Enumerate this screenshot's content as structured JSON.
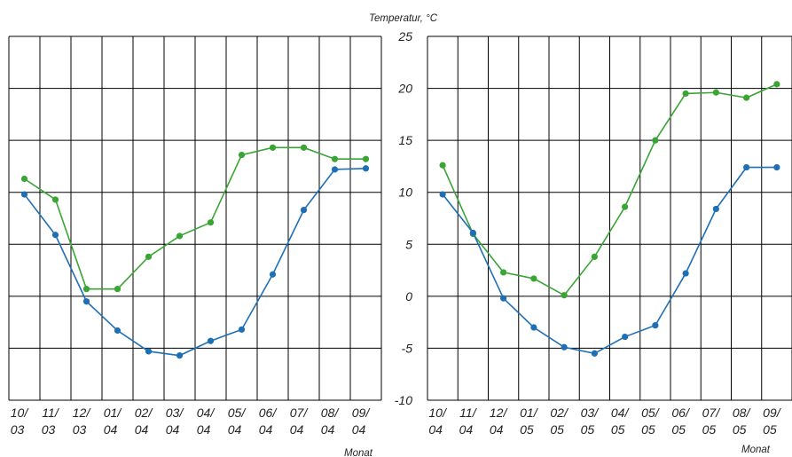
{
  "page": {
    "title": ""
  },
  "colors": {
    "series_green": "#3aa535",
    "series_blue": "#1f6fb5",
    "grid": "#000000"
  },
  "chart_data": [
    {
      "type": "line",
      "ylabel": "",
      "xlabel": "Monat",
      "ylim": [
        -10,
        25
      ],
      "y_ticks": [],
      "categories": [
        [
          "10/",
          "03"
        ],
        [
          "11/",
          "03"
        ],
        [
          "12/",
          "03"
        ],
        [
          "01/",
          "04"
        ],
        [
          "02/",
          "04"
        ],
        [
          "03/",
          "04"
        ],
        [
          "04/",
          "04"
        ],
        [
          "05/",
          "04"
        ],
        [
          "06/",
          "04"
        ],
        [
          "07/",
          "04"
        ],
        [
          "08/",
          "04"
        ],
        [
          "09/",
          "04"
        ]
      ],
      "series": [
        {
          "color": "#3aa535",
          "values": [
            11.3,
            9.3,
            0.7,
            0.7,
            3.8,
            5.8,
            7.1,
            13.6,
            14.3,
            14.3,
            13.2,
            13.2
          ]
        },
        {
          "color": "#1f6fb5",
          "values": [
            9.8,
            5.9,
            -0.5,
            -3.3,
            -5.3,
            -5.7,
            -4.3,
            -3.2,
            2.1,
            8.3,
            12.2,
            12.3
          ]
        }
      ],
      "grid": true
    },
    {
      "type": "line",
      "ylabel": "Temperatur, °C",
      "xlabel": "Monat",
      "ylim": [
        -10,
        25
      ],
      "y_ticks": [
        "-10",
        "-5",
        "0",
        "5",
        "10",
        "15",
        "20",
        "25"
      ],
      "categories": [
        [
          "10/",
          "04"
        ],
        [
          "11/",
          "04"
        ],
        [
          "12/",
          "04"
        ],
        [
          "01/",
          "05"
        ],
        [
          "02/",
          "05"
        ],
        [
          "03/",
          "05"
        ],
        [
          "04/",
          "05"
        ],
        [
          "05/",
          "05"
        ],
        [
          "06/",
          "05"
        ],
        [
          "07/",
          "05"
        ],
        [
          "08/",
          "05"
        ],
        [
          "09/",
          "05"
        ]
      ],
      "series": [
        {
          "color": "#3aa535",
          "values": [
            12.6,
            6.0,
            2.3,
            1.7,
            0.1,
            3.8,
            8.6,
            15.0,
            19.5,
            19.6,
            19.1,
            20.4
          ]
        },
        {
          "color": "#1f6fb5",
          "values": [
            9.8,
            6.1,
            -0.2,
            -3.0,
            -4.9,
            -5.5,
            -3.9,
            -2.8,
            2.2,
            8.4,
            12.4,
            12.4
          ]
        }
      ],
      "grid": true
    }
  ]
}
